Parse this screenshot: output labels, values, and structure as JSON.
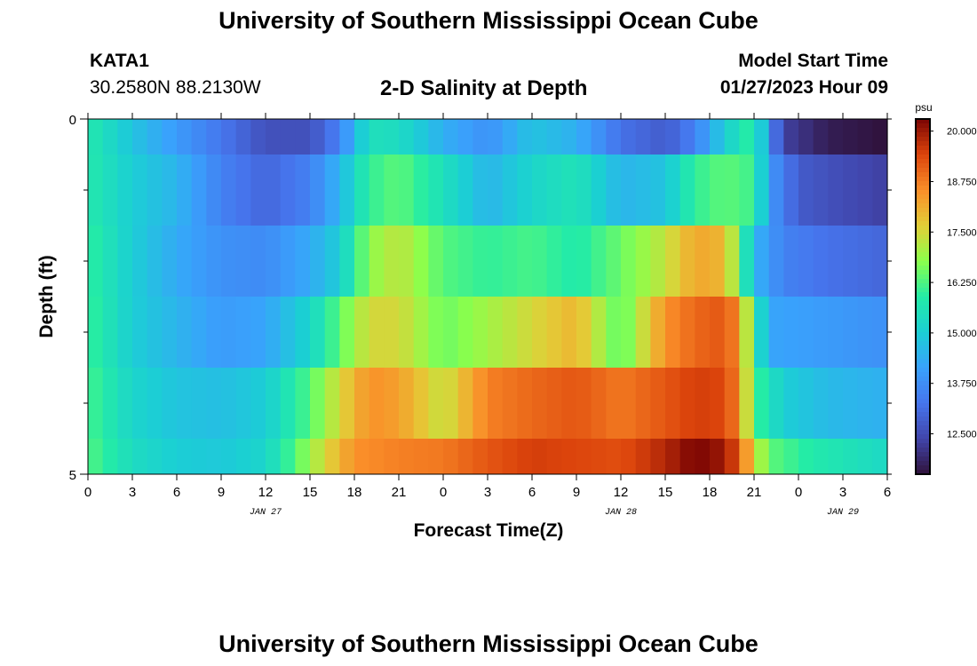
{
  "header": {
    "title": "University of Southern Mississippi Ocean Cube",
    "station": "KATA1",
    "coords": "30.2580N  88.2130W",
    "subtitle": "2-D Salinity at Depth",
    "model_start_label": "Model Start Time",
    "model_start_value": "01/27/2023 Hour 09"
  },
  "footer": {
    "title": "University of Southern Mississippi Ocean Cube"
  },
  "chart_data": {
    "type": "heatmap",
    "title": "2-D Salinity at Depth",
    "xlabel": "Forecast Time(Z)",
    "ylabel": "Depth (ft)",
    "x_ticks": [
      "0",
      "3",
      "6",
      "9",
      "12",
      "15",
      "18",
      "21",
      "0",
      "3",
      "6",
      "9",
      "12",
      "15",
      "18",
      "21",
      "0",
      "3",
      "6"
    ],
    "x_hours": [
      0,
      54
    ],
    "day_labels": [
      {
        "label": "JAN 27",
        "hour": 12
      },
      {
        "label": "JAN 28",
        "hour": 36
      },
      {
        "label": "JAN 29",
        "hour": 51
      }
    ],
    "y_ticks": [
      "0",
      "5"
    ],
    "ylim": [
      0,
      5
    ],
    "depth_rows": [
      {
        "from": 0.0,
        "to": 0.5
      },
      {
        "from": 0.5,
        "to": 1.5
      },
      {
        "from": 1.5,
        "to": 2.5
      },
      {
        "from": 2.5,
        "to": 3.5
      },
      {
        "from": 3.5,
        "to": 4.5
      },
      {
        "from": 4.5,
        "to": 5.0
      }
    ],
    "time_step_hours": 1,
    "salinity_keyframes_by_row": [
      [
        [
          0,
          15.8
        ],
        [
          3,
          14.8
        ],
        [
          6,
          14.0
        ],
        [
          9,
          13.3
        ],
        [
          12,
          12.6
        ],
        [
          15,
          12.6
        ],
        [
          17,
          13.5
        ],
        [
          19,
          15.5
        ],
        [
          21,
          15.4
        ],
        [
          24,
          14.4
        ],
        [
          27,
          13.8
        ],
        [
          30,
          14.8
        ],
        [
          33,
          14.4
        ],
        [
          36,
          13.2
        ],
        [
          39,
          12.8
        ],
        [
          41,
          13.5
        ],
        [
          43,
          15.0
        ],
        [
          45,
          16.1
        ],
        [
          46,
          13.8
        ],
        [
          47,
          12.3
        ],
        [
          50,
          11.7
        ],
        [
          54,
          11.5
        ]
      ],
      [
        [
          0,
          15.8
        ],
        [
          3,
          15.0
        ],
        [
          6,
          14.5
        ],
        [
          9,
          13.5
        ],
        [
          12,
          13.0
        ],
        [
          15,
          13.5
        ],
        [
          17,
          14.5
        ],
        [
          19,
          16.0
        ],
        [
          21,
          16.4
        ],
        [
          24,
          15.5
        ],
        [
          27,
          14.5
        ],
        [
          30,
          15.2
        ],
        [
          33,
          15.6
        ],
        [
          36,
          14.5
        ],
        [
          39,
          14.8
        ],
        [
          41,
          16.0
        ],
        [
          43,
          16.4
        ],
        [
          45,
          16.1
        ],
        [
          46,
          14.0
        ],
        [
          48,
          12.8
        ],
        [
          51,
          12.5
        ],
        [
          54,
          12.3
        ]
      ],
      [
        [
          0,
          16.0
        ],
        [
          3,
          15.0
        ],
        [
          6,
          14.3
        ],
        [
          9,
          13.8
        ],
        [
          12,
          13.7
        ],
        [
          15,
          14.3
        ],
        [
          17,
          15.0
        ],
        [
          19,
          16.8
        ],
        [
          21,
          17.3
        ],
        [
          24,
          16.3
        ],
        [
          27,
          16.0
        ],
        [
          30,
          16.2
        ],
        [
          33,
          15.8
        ],
        [
          36,
          16.5
        ],
        [
          39,
          17.3
        ],
        [
          41,
          18.2
        ],
        [
          43,
          18.0
        ],
        [
          44,
          16.5
        ],
        [
          45,
          14.5
        ],
        [
          47,
          13.5
        ],
        [
          50,
          13.2
        ],
        [
          54,
          13.0
        ]
      ],
      [
        [
          0,
          16.1
        ],
        [
          3,
          15.0
        ],
        [
          6,
          14.5
        ],
        [
          9,
          14.0
        ],
        [
          12,
          14.2
        ],
        [
          15,
          15.2
        ],
        [
          17,
          16.4
        ],
        [
          19,
          17.5
        ],
        [
          21,
          17.5
        ],
        [
          24,
          16.5
        ],
        [
          27,
          17.0
        ],
        [
          30,
          17.5
        ],
        [
          33,
          18.0
        ],
        [
          36,
          16.3
        ],
        [
          39,
          18.5
        ],
        [
          41,
          19.0
        ],
        [
          43,
          19.2
        ],
        [
          44,
          18.5
        ],
        [
          45,
          16.0
        ],
        [
          46,
          14.2
        ],
        [
          50,
          14.0
        ],
        [
          54,
          13.8
        ]
      ],
      [
        [
          0,
          16.2
        ],
        [
          3,
          15.2
        ],
        [
          6,
          14.8
        ],
        [
          9,
          14.7
        ],
        [
          12,
          15.0
        ],
        [
          15,
          16.3
        ],
        [
          17,
          17.5
        ],
        [
          19,
          18.5
        ],
        [
          21,
          18.3
        ],
        [
          24,
          17.3
        ],
        [
          27,
          18.7
        ],
        [
          30,
          19.0
        ],
        [
          33,
          19.2
        ],
        [
          36,
          18.8
        ],
        [
          39,
          19.2
        ],
        [
          41,
          19.5
        ],
        [
          43,
          19.4
        ],
        [
          44,
          18.6
        ],
        [
          45,
          16.2
        ],
        [
          47,
          15.0
        ],
        [
          50,
          14.6
        ],
        [
          54,
          14.4
        ]
      ],
      [
        [
          0,
          16.3
        ],
        [
          3,
          15.4
        ],
        [
          6,
          15.0
        ],
        [
          9,
          14.9
        ],
        [
          12,
          15.2
        ],
        [
          14,
          16.3
        ],
        [
          16,
          17.5
        ],
        [
          18,
          18.5
        ],
        [
          21,
          18.7
        ],
        [
          24,
          18.8
        ],
        [
          27,
          19.2
        ],
        [
          30,
          19.5
        ],
        [
          33,
          19.4
        ],
        [
          36,
          19.3
        ],
        [
          39,
          19.8
        ],
        [
          41,
          20.3
        ],
        [
          43,
          20.0
        ],
        [
          44,
          19.2
        ],
        [
          45,
          17.5
        ],
        [
          46,
          16.4
        ],
        [
          49,
          15.8
        ],
        [
          54,
          15.3
        ]
      ]
    ],
    "colorbar": {
      "unit": "psu",
      "min": 11.5,
      "max": 20.3,
      "ticks": [
        "20.000",
        "18.750",
        "17.500",
        "16.250",
        "15.000",
        "13.750",
        "12.500"
      ],
      "tick_values": [
        20.0,
        18.75,
        17.5,
        16.25,
        15.0,
        13.75,
        12.5
      ],
      "colormap": "turbo"
    }
  }
}
